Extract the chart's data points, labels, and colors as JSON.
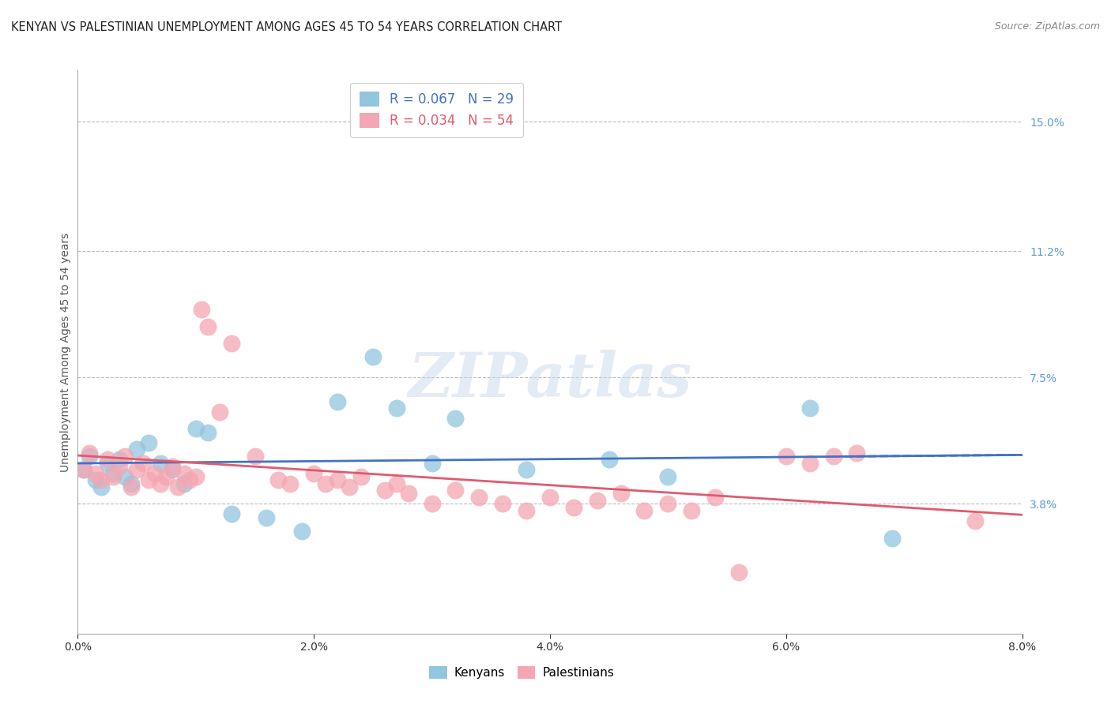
{
  "title": "KENYAN VS PALESTINIAN UNEMPLOYMENT AMONG AGES 45 TO 54 YEARS CORRELATION CHART",
  "source": "Source: ZipAtlas.com",
  "ylabel": "Unemployment Among Ages 45 to 54 years",
  "xlabel_vals": [
    0.0,
    2.0,
    4.0,
    6.0,
    8.0
  ],
  "ylabel_vals_right": [
    15.0,
    11.2,
    7.5,
    3.8
  ],
  "ylabel_labels_right": [
    "15.0%",
    "11.2%",
    "7.5%",
    "3.8%"
  ],
  "xmin": 0.0,
  "xmax": 8.0,
  "ymin": 0.0,
  "ymax": 16.5,
  "kenyan_color": "#92C5DE",
  "palestinian_color": "#F4A6B2",
  "kenyan_trend_color": "#4472C4",
  "palestinian_trend_color": "#E05A6E",
  "background_color": "#FFFFFF",
  "grid_color": "#BBBBBB",
  "title_color": "#222222",
  "axis_label_color": "#555555",
  "right_tick_color": "#5B9BD5",
  "watermark": "ZIPatlas",
  "kenyan_x": [
    0.05,
    0.1,
    0.15,
    0.2,
    0.25,
    0.3,
    0.35,
    0.4,
    0.45,
    0.5,
    0.6,
    0.7,
    0.8,
    0.9,
    1.0,
    1.1,
    1.3,
    1.6,
    1.9,
    2.2,
    2.5,
    2.7,
    3.0,
    3.2,
    3.8,
    4.5,
    5.0,
    6.2,
    6.9
  ],
  "kenyan_y": [
    4.8,
    5.2,
    4.5,
    4.3,
    5.0,
    4.7,
    5.1,
    4.6,
    4.4,
    5.4,
    5.6,
    5.0,
    4.8,
    4.4,
    6.0,
    5.9,
    3.5,
    3.4,
    3.0,
    6.8,
    8.1,
    6.6,
    5.0,
    6.3,
    4.8,
    5.1,
    4.6,
    6.6,
    2.8
  ],
  "palestinian_x": [
    0.05,
    0.1,
    0.15,
    0.2,
    0.25,
    0.3,
    0.35,
    0.4,
    0.45,
    0.5,
    0.55,
    0.6,
    0.65,
    0.7,
    0.75,
    0.8,
    0.85,
    0.9,
    0.95,
    1.0,
    1.05,
    1.1,
    1.2,
    1.3,
    1.5,
    1.7,
    1.8,
    2.0,
    2.1,
    2.2,
    2.3,
    2.4,
    2.6,
    2.7,
    2.8,
    3.0,
    3.2,
    3.4,
    3.6,
    3.8,
    4.0,
    4.2,
    4.4,
    4.6,
    4.8,
    5.0,
    5.2,
    5.4,
    5.6,
    6.0,
    6.2,
    6.4,
    6.6,
    7.6
  ],
  "palestinian_y": [
    4.8,
    5.3,
    4.7,
    4.5,
    5.1,
    4.6,
    4.9,
    5.2,
    4.3,
    4.8,
    5.0,
    4.5,
    4.7,
    4.4,
    4.6,
    4.9,
    4.3,
    4.7,
    4.5,
    4.6,
    9.5,
    9.0,
    6.5,
    8.5,
    5.2,
    4.5,
    4.4,
    4.7,
    4.4,
    4.5,
    4.3,
    4.6,
    4.2,
    4.4,
    4.1,
    3.8,
    4.2,
    4.0,
    3.8,
    3.6,
    4.0,
    3.7,
    3.9,
    4.1,
    3.6,
    3.8,
    3.6,
    4.0,
    1.8,
    5.2,
    5.0,
    5.2,
    5.3,
    3.3
  ],
  "legend_kenyan_label": "R = 0.067   N = 29",
  "legend_palestinian_label": "R = 0.034   N = 54",
  "legend_kenyan_R": "R = 0.067",
  "legend_kenyan_N": "N = 29",
  "legend_palestinian_R": "R = 0.034",
  "legend_palestinian_N": "N = 54"
}
